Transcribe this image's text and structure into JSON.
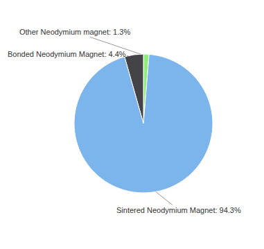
{
  "chart_data": {
    "type": "pie",
    "categories": [
      "Other Neodymium magnet",
      "Bonded Neodymium Magnet",
      "Sintered Neodymium Magnet"
    ],
    "values": [
      1.3,
      4.4,
      94.3
    ],
    "value_labels": [
      "Other Neodymium magnet: 1.3%",
      "Bonded Neodymium Magnet: 4.4%",
      "Sintered Neodymium Magnet: 94.3%"
    ],
    "colors": [
      "#90ed7d",
      "#434348",
      "#7cb5ec"
    ],
    "data_labels": true
  }
}
